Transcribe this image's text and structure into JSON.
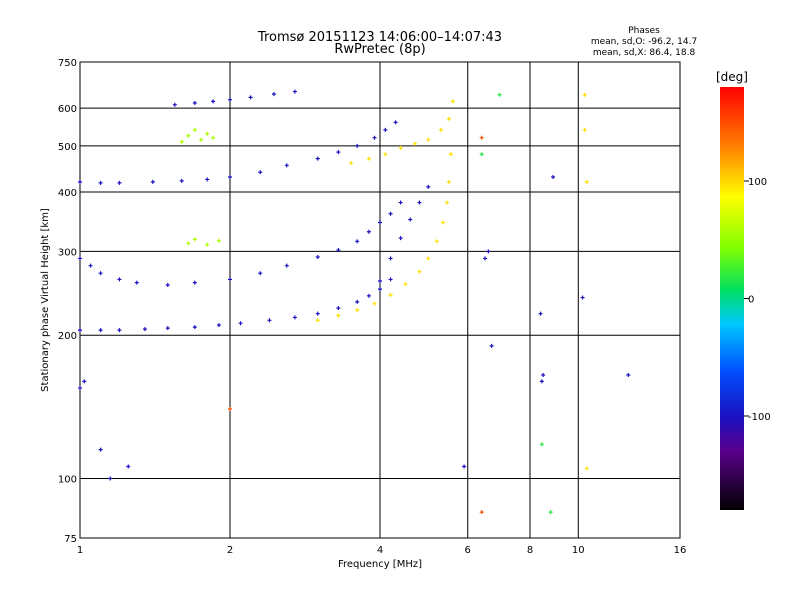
{
  "chart_data": {
    "type": "scatter",
    "title": "Tromsø 20151123 14:06:00–14:07:43",
    "subtitle": "RwPretec (8p)",
    "xlabel": "Frequency [MHz]",
    "ylabel": "Stationary phase Virtual Height [km]",
    "x_scale": "log",
    "y_scale": "log",
    "xlim": [
      1,
      16
    ],
    "ylim": [
      75,
      750
    ],
    "x_ticks": [
      1,
      2,
      4,
      6,
      8,
      10,
      16
    ],
    "y_ticks": [
      75,
      100,
      200,
      300,
      400,
      500,
      600,
      750
    ],
    "grid": true,
    "legend": {
      "title": "Phases",
      "lines": [
        "mean, sd,O: -96.2, 14.7",
        "mean, sd,X: 86.4, 18.8"
      ],
      "placement": "top-right"
    },
    "colorbar": {
      "label": "[deg]",
      "range": [
        -180,
        180
      ],
      "ticks": [
        100,
        0,
        -100
      ],
      "placement": "right"
    },
    "traces": [
      {
        "name": "",
        "phase": -100,
        "x": [
          1.0,
          1.1,
          1.2,
          1.35,
          1.5,
          1.7,
          1.9,
          2.1,
          2.4,
          2.7,
          3.0,
          3.3,
          3.6,
          3.8,
          4.0,
          4.2
        ],
        "y": [
          205,
          205,
          205,
          206,
          207,
          208,
          210,
          212,
          215,
          218,
          222,
          228,
          235,
          242,
          250,
          262
        ]
      },
      {
        "name": "",
        "phase": -100,
        "x": [
          1.0,
          1.05,
          1.1,
          1.2,
          1.3,
          1.5,
          1.7,
          2.0,
          2.3,
          2.6,
          3.0,
          3.3,
          3.6,
          3.8,
          4.0,
          4.2,
          4.4
        ],
        "y": [
          290,
          280,
          270,
          262,
          258,
          255,
          258,
          262,
          270,
          280,
          292,
          302,
          315,
          330,
          345,
          360,
          380
        ]
      },
      {
        "name": "",
        "phase": -100,
        "x": [
          1.0,
          1.1,
          1.2,
          1.4,
          1.6,
          1.8,
          2.0,
          2.3,
          2.6,
          3.0,
          3.3,
          3.6,
          3.9,
          4.1,
          4.3
        ],
        "y": [
          420,
          418,
          418,
          420,
          422,
          425,
          430,
          440,
          455,
          470,
          485,
          500,
          520,
          540,
          560
        ]
      },
      {
        "name": "",
        "phase": -100,
        "x": [
          1.55,
          1.7,
          1.85,
          2.0,
          2.2,
          2.45,
          2.7
        ],
        "y": [
          610,
          615,
          620,
          625,
          632,
          642,
          650
        ]
      },
      {
        "name": "",
        "phase": 100,
        "x": [
          3.0,
          3.3,
          3.6,
          3.9,
          4.2,
          4.5,
          4.8,
          5.0,
          5.2,
          5.35,
          5.45,
          5.5,
          5.55
        ],
        "y": [
          215,
          220,
          226,
          233,
          243,
          256,
          272,
          290,
          315,
          345,
          380,
          420,
          480
        ]
      },
      {
        "name": "",
        "phase": 100,
        "x": [
          3.5,
          3.8,
          4.1,
          4.4,
          4.7,
          5.0,
          5.3,
          5.5,
          5.6
        ],
        "y": [
          460,
          470,
          480,
          495,
          505,
          515,
          540,
          570,
          620
        ]
      },
      {
        "name": "",
        "phase": 60,
        "x": [
          1.6,
          1.65,
          1.7,
          1.75,
          1.8,
          1.85
        ],
        "y": [
          510,
          525,
          540,
          515,
          530,
          520
        ]
      },
      {
        "name": "",
        "phase": 60,
        "x": [
          1.65,
          1.7,
          1.8,
          1.9
        ],
        "y": [
          312,
          318,
          310,
          316
        ]
      },
      {
        "name": "",
        "phase": -100,
        "x": [
          4.0,
          4.2,
          4.4,
          4.6,
          4.8,
          5.0
        ],
        "y": [
          260,
          290,
          320,
          350,
          380,
          410
        ]
      },
      {
        "name": "",
        "phase": -100,
        "x": [
          1.0,
          1.02,
          1.1,
          1.15,
          1.25
        ],
        "y": [
          155,
          160,
          115,
          100,
          106
        ]
      },
      {
        "name": "",
        "phase": -100,
        "x": [
          8.4,
          8.5,
          8.9,
          10.2,
          12.6
        ],
        "y": [
          222,
          165,
          430,
          240,
          165
        ]
      },
      {
        "name": "",
        "phase": -100,
        "x": [
          5.9,
          6.5,
          6.6,
          6.7,
          8.45
        ],
        "y": [
          106,
          290,
          300,
          190,
          160
        ]
      },
      {
        "name": "",
        "phase": 100,
        "x": [
          10.3,
          10.3,
          10.4,
          10.4
        ],
        "y": [
          640,
          540,
          420,
          105
        ]
      },
      {
        "name": "",
        "phase": 150,
        "x": [
          6.4,
          6.4,
          2.0
        ],
        "y": [
          520,
          85,
          140
        ]
      },
      {
        "name": "",
        "phase": 20,
        "x": [
          6.4,
          8.45,
          8.8,
          6.95
        ],
        "y": [
          480,
          118,
          85,
          640
        ]
      }
    ]
  }
}
